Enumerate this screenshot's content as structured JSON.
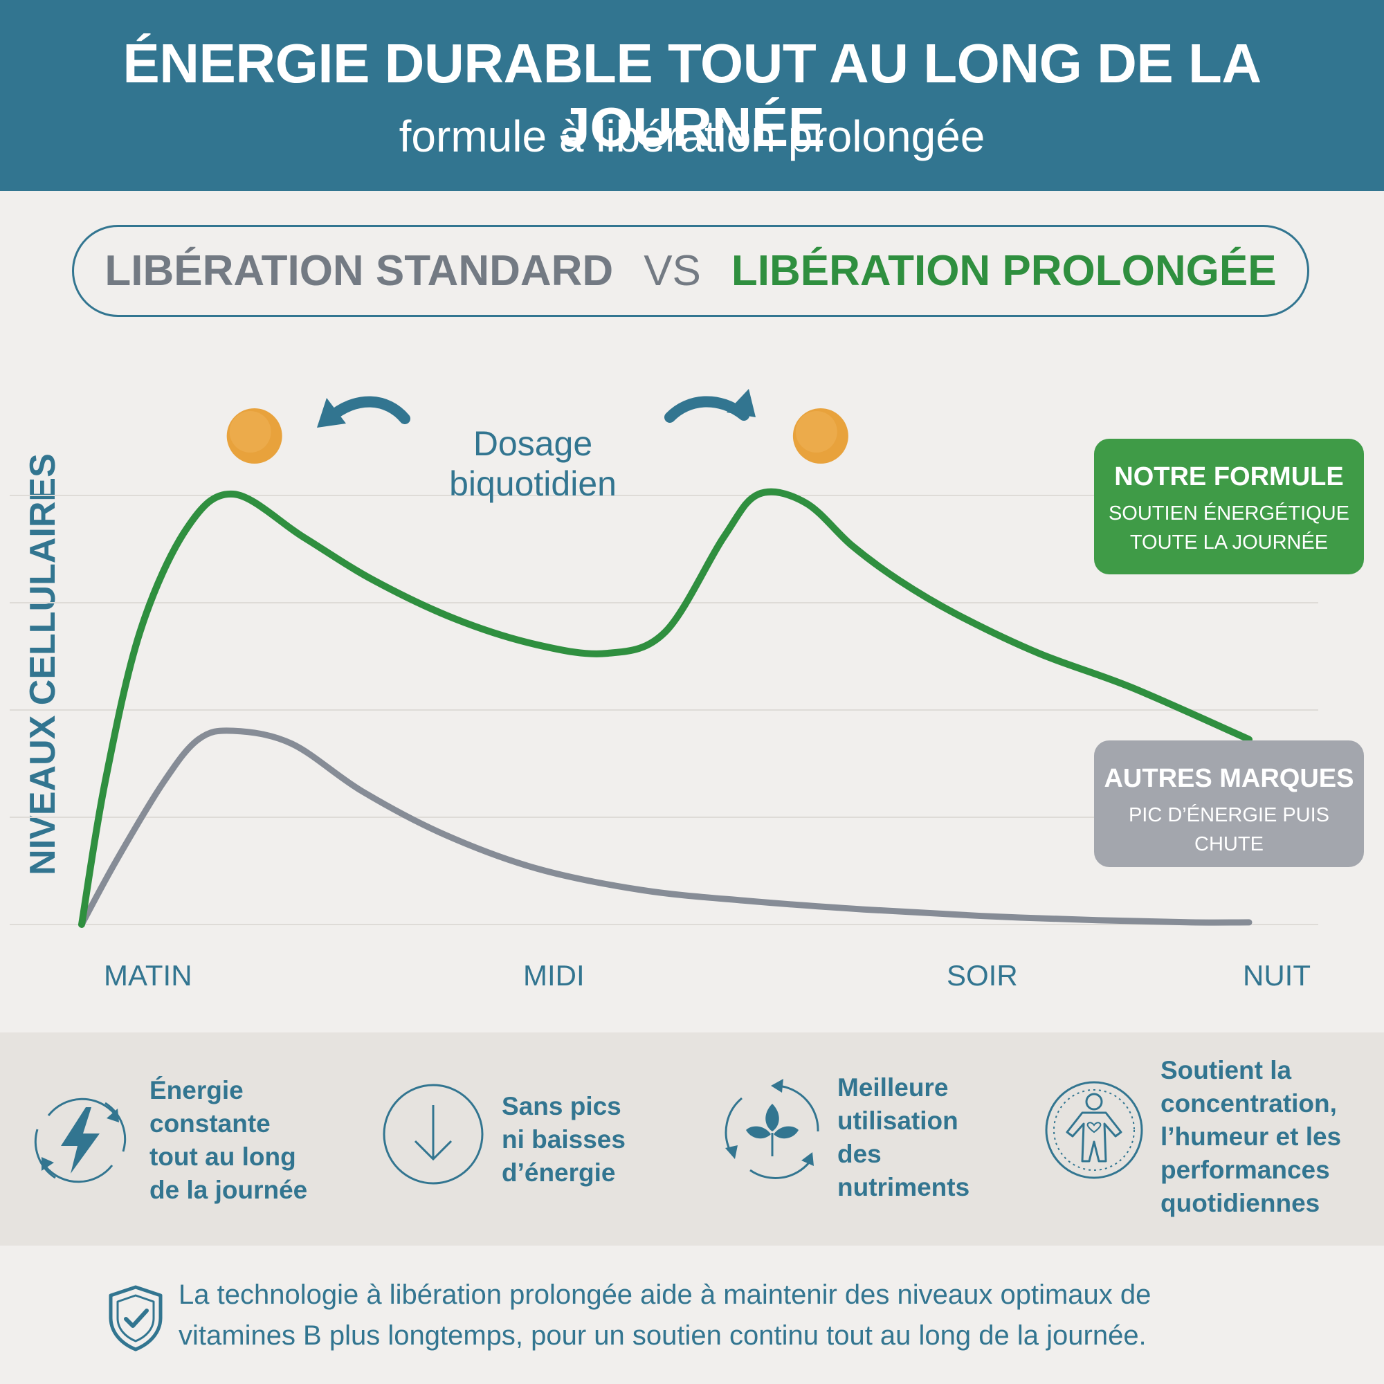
{
  "header": {
    "title": "ÉNERGIE DURABLE TOUT AU LONG DE LA JOURNÉE",
    "subtitle": "formule à libération prolongée"
  },
  "comparison": {
    "standard": "LIBÉRATION STANDARD",
    "vs": "VS",
    "prolonged": "LIBÉRATION PROLONGÉE"
  },
  "annotation": {
    "dosage_line1": "Dosage",
    "dosage_line2": "biquotidien"
  },
  "colors": {
    "header_bg": "#327590",
    "ours": "#2f8f3f",
    "others": "#868c96",
    "pill": "#e8a23c"
  },
  "chart_data": {
    "type": "line",
    "title": "",
    "xlabel": "",
    "ylabel": "NIVEAUX CELLULAIRES",
    "x_ticks": [
      "MATIN",
      "MIDI",
      "SOIR",
      "NUIT"
    ],
    "x_tick_positions": [
      0.06,
      0.41,
      0.78,
      1.03
    ],
    "xlim": [
      0,
      1
    ],
    "ylim": [
      0,
      1
    ],
    "grid": true,
    "series": [
      {
        "name": "NOTRE FORMULE",
        "description": "SOUTIEN ÉNERGÉTIQUE TOUTE LA JOURNÉE",
        "x": [
          0.0,
          0.02,
          0.05,
          0.09,
          0.13,
          0.19,
          0.25,
          0.32,
          0.39,
          0.45,
          0.5,
          0.55,
          0.58,
          0.62,
          0.66,
          0.7,
          0.75,
          0.82,
          0.9,
          1.0
        ],
        "y": [
          0.0,
          0.33,
          0.68,
          0.92,
          1.0,
          0.9,
          0.8,
          0.71,
          0.65,
          0.63,
          0.68,
          0.9,
          1.0,
          0.98,
          0.88,
          0.8,
          0.72,
          0.63,
          0.55,
          0.43
        ]
      },
      {
        "name": "AUTRES MARQUES",
        "description": "PIC D’ÉNERGIE PUIS CHUTE",
        "x": [
          0.0,
          0.03,
          0.07,
          0.1,
          0.13,
          0.18,
          0.24,
          0.31,
          0.39,
          0.48,
          0.57,
          0.67,
          0.77,
          0.87,
          0.95,
          1.0
        ],
        "y": [
          0.0,
          0.15,
          0.33,
          0.43,
          0.45,
          0.42,
          0.31,
          0.21,
          0.13,
          0.08,
          0.055,
          0.035,
          0.02,
          0.01,
          0.005,
          0.005
        ]
      }
    ],
    "dose_markers_x": [
      0.148,
      0.633
    ]
  },
  "features": [
    {
      "icon": "lightning-cycle-icon",
      "lines": [
        "Énergie",
        "constante",
        "tout au long",
        "de la journée"
      ]
    },
    {
      "icon": "down-arrow-icon",
      "lines": [
        "Sans pics",
        "ni baisses",
        "d’énergie"
      ]
    },
    {
      "icon": "leaf-cycle-icon",
      "lines": [
        "Meilleure",
        "utilisation",
        "des",
        "nutriments"
      ]
    },
    {
      "icon": "person-heart-icon",
      "lines": [
        "Soutient la",
        "concentration,",
        "l’humeur et les",
        "performances",
        "quotidiennes"
      ]
    }
  ],
  "footer": {
    "icon": "shield-check-icon",
    "line1": "La technologie à libération prolongée aide à maintenir des niveaux optimaux de",
    "line2": "vitamines B plus longtemps, pour un soutien continu tout au long de la journée."
  }
}
